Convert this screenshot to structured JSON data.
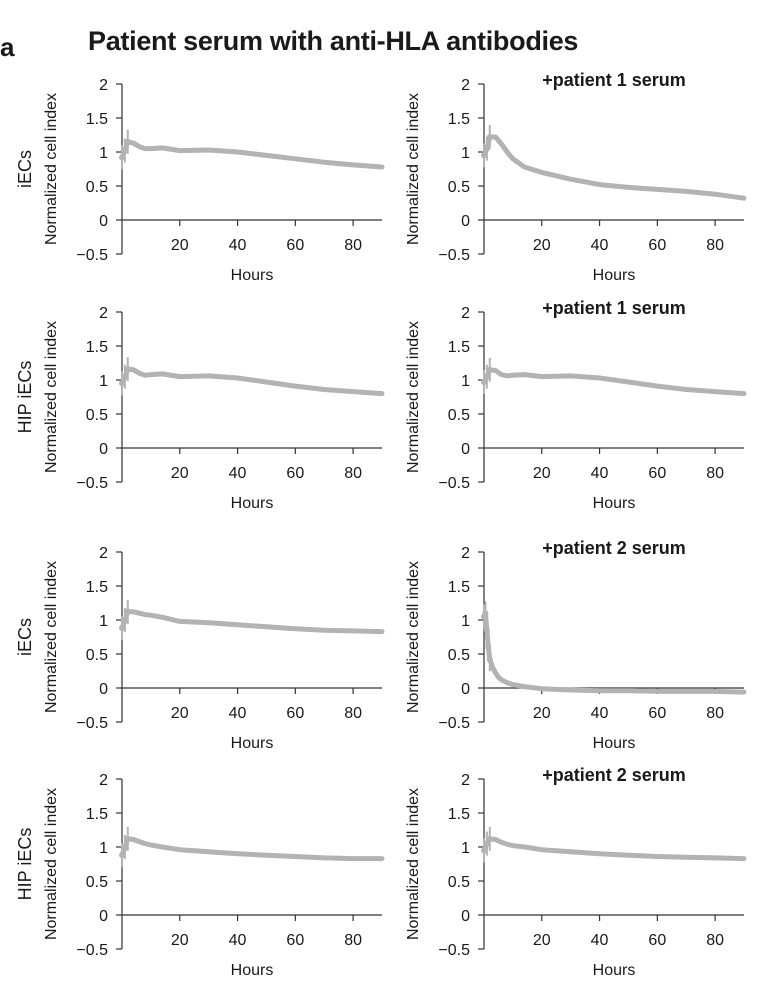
{
  "figure": {
    "panel_letter": "a",
    "title": "Patient serum with anti-HLA antibodies"
  },
  "colors": {
    "series": "#b3b3b3",
    "axis": "#333333",
    "text": "#1a1a1a"
  },
  "chart_data": [
    {
      "type": "line",
      "row_label": "iECs",
      "title": "",
      "xlabel": "Hours",
      "ylabel": "Normalized cell index",
      "xlim": [
        0,
        90
      ],
      "ylim": [
        -0.5,
        2
      ],
      "xticks": [
        20,
        40,
        60,
        80
      ],
      "yticks": [
        -0.5,
        0,
        0.5,
        1,
        1.5,
        2
      ],
      "grid": false,
      "series": [
        {
          "x": [
            0,
            1,
            2,
            4,
            6,
            8,
            10,
            14,
            20,
            30,
            40,
            50,
            60,
            70,
            80,
            90
          ],
          "y": [
            0.92,
            1.02,
            1.15,
            1.13,
            1.08,
            1.05,
            1.05,
            1.06,
            1.02,
            1.03,
            1.0,
            0.95,
            0.9,
            0.85,
            0.81,
            0.78
          ]
        }
      ]
    },
    {
      "type": "line",
      "row_label": "",
      "title": "+patient 1 serum",
      "xlabel": "Hours",
      "ylabel": "Normalized cell index",
      "xlim": [
        0,
        90
      ],
      "ylim": [
        -0.5,
        2
      ],
      "xticks": [
        20,
        40,
        60,
        80
      ],
      "yticks": [
        -0.5,
        0,
        0.5,
        1,
        1.5,
        2
      ],
      "grid": false,
      "series": [
        {
          "x": [
            0,
            1,
            2,
            4,
            6,
            8,
            10,
            14,
            20,
            30,
            40,
            50,
            60,
            70,
            80,
            90
          ],
          "y": [
            0.95,
            1.05,
            1.22,
            1.22,
            1.12,
            1.0,
            0.9,
            0.78,
            0.7,
            0.6,
            0.52,
            0.48,
            0.45,
            0.42,
            0.38,
            0.32
          ]
        }
      ]
    },
    {
      "type": "line",
      "row_label": "HIP iECs",
      "title": "",
      "xlabel": "Hours",
      "ylabel": "Normalized cell index",
      "xlim": [
        0,
        90
      ],
      "ylim": [
        -0.5,
        2
      ],
      "xticks": [
        20,
        40,
        60,
        80
      ],
      "yticks": [
        -0.5,
        0,
        0.5,
        1,
        1.5,
        2
      ],
      "grid": false,
      "series": [
        {
          "x": [
            0,
            1,
            2,
            4,
            6,
            8,
            10,
            14,
            20,
            30,
            40,
            50,
            60,
            70,
            80,
            90
          ],
          "y": [
            0.95,
            1.05,
            1.16,
            1.15,
            1.1,
            1.07,
            1.08,
            1.09,
            1.05,
            1.06,
            1.03,
            0.97,
            0.91,
            0.86,
            0.83,
            0.8
          ]
        }
      ]
    },
    {
      "type": "line",
      "row_label": "",
      "title": "+patient 1 serum",
      "xlabel": "Hours",
      "ylabel": "Normalized cell index",
      "xlim": [
        0,
        90
      ],
      "ylim": [
        -0.5,
        2
      ],
      "xticks": [
        20,
        40,
        60,
        80
      ],
      "yticks": [
        -0.5,
        0,
        0.5,
        1,
        1.5,
        2
      ],
      "grid": false,
      "series": [
        {
          "x": [
            0,
            1,
            2,
            4,
            6,
            8,
            10,
            14,
            20,
            30,
            40,
            50,
            60,
            70,
            80,
            90
          ],
          "y": [
            0.97,
            1.05,
            1.15,
            1.14,
            1.08,
            1.06,
            1.07,
            1.08,
            1.05,
            1.06,
            1.03,
            0.97,
            0.91,
            0.86,
            0.83,
            0.8
          ]
        }
      ]
    },
    {
      "type": "line",
      "row_label": "iECs",
      "title": "",
      "xlabel": "Hours",
      "ylabel": "Normalized cell index",
      "xlim": [
        0,
        90
      ],
      "ylim": [
        -0.5,
        2
      ],
      "xticks": [
        20,
        40,
        60,
        80
      ],
      "yticks": [
        -0.5,
        0,
        0.5,
        1,
        1.5,
        2
      ],
      "grid": false,
      "series": [
        {
          "x": [
            0,
            1,
            2,
            4,
            6,
            8,
            10,
            14,
            20,
            30,
            40,
            50,
            60,
            70,
            80,
            90
          ],
          "y": [
            0.88,
            1.0,
            1.12,
            1.12,
            1.1,
            1.08,
            1.07,
            1.04,
            0.98,
            0.96,
            0.93,
            0.9,
            0.87,
            0.85,
            0.84,
            0.83
          ]
        }
      ]
    },
    {
      "type": "line",
      "row_label": "",
      "title": "+patient 2 serum",
      "xlabel": "Hours",
      "ylabel": "Normalized cell index",
      "xlim": [
        0,
        90
      ],
      "ylim": [
        -0.5,
        2
      ],
      "xticks": [
        20,
        40,
        60,
        80
      ],
      "yticks": [
        -0.5,
        0,
        0.5,
        1,
        1.5,
        2
      ],
      "grid": false,
      "series": [
        {
          "x": [
            0,
            0.5,
            1,
            1.5,
            2,
            3,
            4,
            5,
            6,
            8,
            10,
            14,
            20,
            30,
            40,
            50,
            60,
            70,
            80,
            90
          ],
          "y": [
            1.05,
            1.1,
            0.85,
            0.6,
            0.42,
            0.3,
            0.22,
            0.16,
            0.12,
            0.08,
            0.05,
            0.02,
            -0.01,
            -0.03,
            -0.04,
            -0.04,
            -0.05,
            -0.05,
            -0.05,
            -0.06
          ]
        }
      ]
    },
    {
      "type": "line",
      "row_label": "HIP iECs",
      "title": "",
      "xlabel": "Hours",
      "ylabel": "Normalized cell index",
      "xlim": [
        0,
        90
      ],
      "ylim": [
        -0.5,
        2
      ],
      "xticks": [
        20,
        40,
        60,
        80
      ],
      "yticks": [
        -0.5,
        0,
        0.5,
        1,
        1.5,
        2
      ],
      "grid": false,
      "series": [
        {
          "x": [
            0,
            1,
            2,
            4,
            6,
            8,
            10,
            14,
            20,
            30,
            40,
            50,
            60,
            70,
            80,
            90
          ],
          "y": [
            0.88,
            1.0,
            1.12,
            1.11,
            1.08,
            1.05,
            1.03,
            1.0,
            0.96,
            0.93,
            0.9,
            0.88,
            0.86,
            0.84,
            0.83,
            0.83
          ]
        }
      ]
    },
    {
      "type": "line",
      "row_label": "",
      "title": "+patient 2 serum",
      "xlabel": "Hours",
      "ylabel": "Normalized cell index",
      "xlim": [
        0,
        90
      ],
      "ylim": [
        -0.5,
        2
      ],
      "xticks": [
        20,
        40,
        60,
        80
      ],
      "yticks": [
        -0.5,
        0,
        0.5,
        1,
        1.5,
        2
      ],
      "grid": false,
      "series": [
        {
          "x": [
            0,
            1,
            2,
            4,
            6,
            8,
            10,
            14,
            20,
            30,
            40,
            50,
            60,
            70,
            80,
            90
          ],
          "y": [
            0.95,
            1.05,
            1.12,
            1.11,
            1.07,
            1.04,
            1.02,
            1.0,
            0.96,
            0.93,
            0.9,
            0.88,
            0.86,
            0.85,
            0.84,
            0.83
          ]
        }
      ]
    }
  ]
}
